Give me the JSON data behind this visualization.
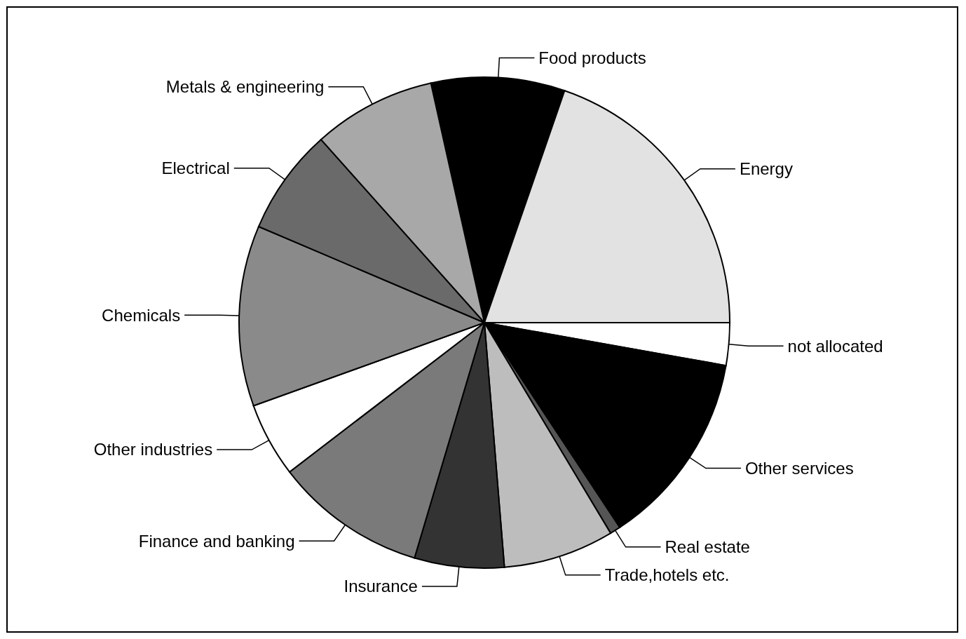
{
  "chart_data": {
    "type": "pie",
    "categories": [
      "Food products",
      "Energy",
      "not allocated",
      "Other services",
      "Real estate",
      "Trade,hotels etc.",
      "Insurance",
      "Finance and banking",
      "Other industries",
      "Chemicals",
      "Electrical",
      "Metals & engineering"
    ],
    "values": [
      8.8,
      19.7,
      2.8,
      12.9,
      0.7,
      7.3,
      5.9,
      10.0,
      4.9,
      11.9,
      7.0,
      8.1
    ],
    "colors": [
      "#000000",
      "#e2e2e2",
      "#ffffff",
      "#000000",
      "#555555",
      "#bdbdbd",
      "#333333",
      "#7a7a7a",
      "#ffffff",
      "#8a8a8a",
      "#6a6a6a",
      "#a8a8a8"
    ]
  }
}
